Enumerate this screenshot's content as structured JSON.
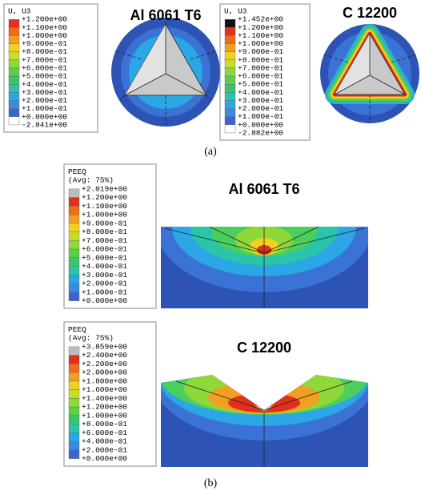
{
  "panel_a": {
    "plots": [
      {
        "title": "Al 6061 T6",
        "legend_title": [
          "U, U3"
        ],
        "legend_labels": [
          "+1.200e+00",
          "+1.100e+00",
          "+1.000e+00",
          "+9.000e-01",
          "+8.000e-01",
          "+7.000e-01",
          "+6.000e-01",
          "+5.000e-01",
          "+4.000e-01",
          "+3.000e-01",
          "+2.000e-01",
          "+1.000e-01",
          "+0.000e+00",
          "-2.841e+00"
        ]
      },
      {
        "title": "C 12200",
        "legend_title": [
          "U, U3"
        ],
        "legend_labels": [
          "+1.452e+00",
          "+1.200e+00",
          "+1.100e+00",
          "+1.000e+00",
          "+9.000e-01",
          "+8.000e-01",
          "+7.000e-01",
          "+6.000e-01",
          "+5.000e-01",
          "+4.000e-01",
          "+3.000e-01",
          "+2.000e-01",
          "+1.000e-01",
          "+0.000e+00",
          "-2.882e+00"
        ]
      }
    ],
    "caption": "(a)"
  },
  "panel_b": {
    "plots": [
      {
        "title": "Al 6061 T6",
        "legend_title": [
          "PEEQ",
          "(Avg: 75%)"
        ],
        "legend_labels": [
          "+2.019e+00",
          "+1.200e+00",
          "+1.100e+00",
          "+1.000e+00",
          "+9.000e-01",
          "+8.000e-01",
          "+7.000e-01",
          "+6.000e-01",
          "+5.000e-01",
          "+4.000e-01",
          "+3.000e-01",
          "+2.000e-01",
          "+1.000e-01",
          "+0.000e+00"
        ]
      },
      {
        "title": "C 12200",
        "legend_title": [
          "PEEQ",
          "(Avg: 75%)"
        ],
        "legend_labels": [
          "+3.859e+00",
          "+2.400e+00",
          "+2.200e+00",
          "+2.000e+00",
          "+1.800e+00",
          "+1.600e+00",
          "+1.400e+00",
          "+1.200e+00",
          "+1.000e+00",
          "+8.000e-01",
          "+6.000e-01",
          "+4.000e-01",
          "+2.000e-01",
          "+0.000e+00"
        ]
      }
    ],
    "caption": "(b)"
  }
}
